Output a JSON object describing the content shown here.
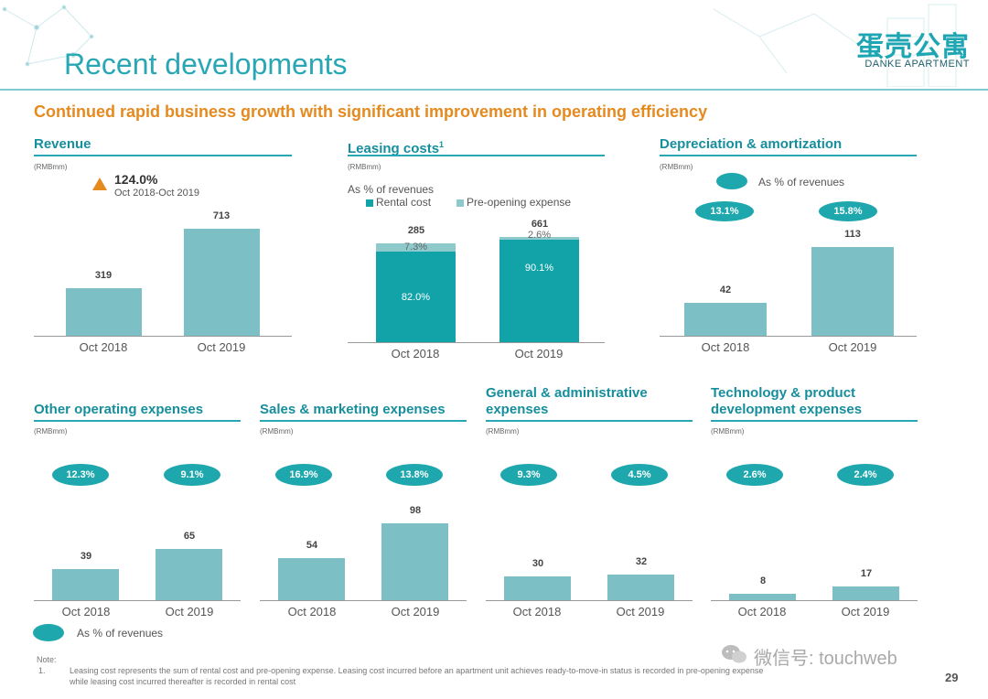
{
  "header": {
    "title": "Recent developments",
    "subtitle": "Continued rapid business growth with significant improvement in operating efficiency",
    "logo_cn": "蛋壳公寓",
    "logo_en": "DANKE APARTMENT"
  },
  "colors": {
    "accent": "#2aa7b5",
    "subtitle": "#e58a1f",
    "bar": "#7cbfc5",
    "oval": "#1ea8ae",
    "rental": "#11a3a8",
    "preopen": "#8ec9cc",
    "growth_arrow": "#e58a1f"
  },
  "unit_label": "(RMBmm)",
  "x_labels": [
    "Oct 2018",
    "Oct 2019"
  ],
  "revenue_panel": {
    "title": "Revenue",
    "growth_pct": "124.0%",
    "growth_period": "Oct 2018-Oct 2019"
  },
  "leasing_panel": {
    "title": "Leasing costs",
    "title_sup": "1",
    "pct_caption": "As % of revenues",
    "legend_rental": "Rental cost",
    "legend_preopen": "Pre-opening expense",
    "totals": [
      "285",
      "661"
    ],
    "rental_pct": [
      "82.0%",
      "90.1%"
    ],
    "preopen_pct": [
      "7.3%",
      "2.6%"
    ]
  },
  "depreciation_panel": {
    "title": "Depreciation & amortization",
    "legend_label": "As % of revenues",
    "pct": [
      "13.1%",
      "15.8%"
    ]
  },
  "other_panel": {
    "title": "Other operating expenses",
    "pct": [
      "12.3%",
      "9.1%"
    ]
  },
  "sales_panel": {
    "title": "Sales & marketing expenses",
    "pct": [
      "16.9%",
      "13.8%"
    ]
  },
  "ga_panel": {
    "title_line1": "General & administrative",
    "title_line2": "expenses",
    "pct": [
      "9.3%",
      "4.5%"
    ]
  },
  "tech_panel": {
    "title_line1": "Technology & product",
    "title_line2": "development expenses",
    "pct": [
      "2.6%",
      "2.4%"
    ]
  },
  "bottom_legend": "As % of revenues",
  "footer": {
    "note_label": "Note:",
    "note_number": "1.",
    "note_text_1": "Leasing cost represents the sum of rental cost and pre-opening expense. Leasing cost incurred before an apartment unit achieves ready-to-move-in status is recorded in pre-opening expense",
    "note_text_2": "while leasing cost incurred thereafter is recorded in rental cost",
    "watermark": "微信号: touchweb",
    "page_number": "29"
  },
  "chart_data": [
    {
      "type": "bar",
      "title": "Revenue",
      "ylabel": "(RMBmm)",
      "categories": [
        "Oct 2018",
        "Oct 2019"
      ],
      "values": [
        319,
        713
      ]
    },
    {
      "type": "bar",
      "title": "Leasing costs",
      "ylabel": "(RMBmm)",
      "categories": [
        "Oct 2018",
        "Oct 2019"
      ],
      "totals": [
        285,
        661
      ],
      "series": [
        {
          "name": "Rental cost",
          "pct_of_revenue": [
            82.0,
            90.1
          ]
        },
        {
          "name": "Pre-opening expense",
          "pct_of_revenue": [
            7.3,
            2.6
          ]
        }
      ]
    },
    {
      "type": "bar",
      "title": "Depreciation & amortization",
      "ylabel": "(RMBmm)",
      "categories": [
        "Oct 2018",
        "Oct 2019"
      ],
      "values": [
        42,
        113
      ],
      "pct_of_revenue": [
        13.1,
        15.8
      ]
    },
    {
      "type": "bar",
      "title": "Other operating expenses",
      "ylabel": "(RMBmm)",
      "categories": [
        "Oct 2018",
        "Oct 2019"
      ],
      "values": [
        39,
        65
      ],
      "pct_of_revenue": [
        12.3,
        9.1
      ]
    },
    {
      "type": "bar",
      "title": "Sales & marketing expenses",
      "ylabel": "(RMBmm)",
      "categories": [
        "Oct 2018",
        "Oct 2019"
      ],
      "values": [
        54,
        98
      ],
      "pct_of_revenue": [
        16.9,
        13.8
      ]
    },
    {
      "type": "bar",
      "title": "General & administrative expenses",
      "ylabel": "(RMBmm)",
      "categories": [
        "Oct 2018",
        "Oct 2019"
      ],
      "values": [
        30,
        32
      ],
      "pct_of_revenue": [
        9.3,
        4.5
      ]
    },
    {
      "type": "bar",
      "title": "Technology & product development expenses",
      "ylabel": "(RMBmm)",
      "categories": [
        "Oct 2018",
        "Oct 2019"
      ],
      "values": [
        8,
        17
      ],
      "pct_of_revenue": [
        2.6,
        2.4
      ]
    }
  ]
}
